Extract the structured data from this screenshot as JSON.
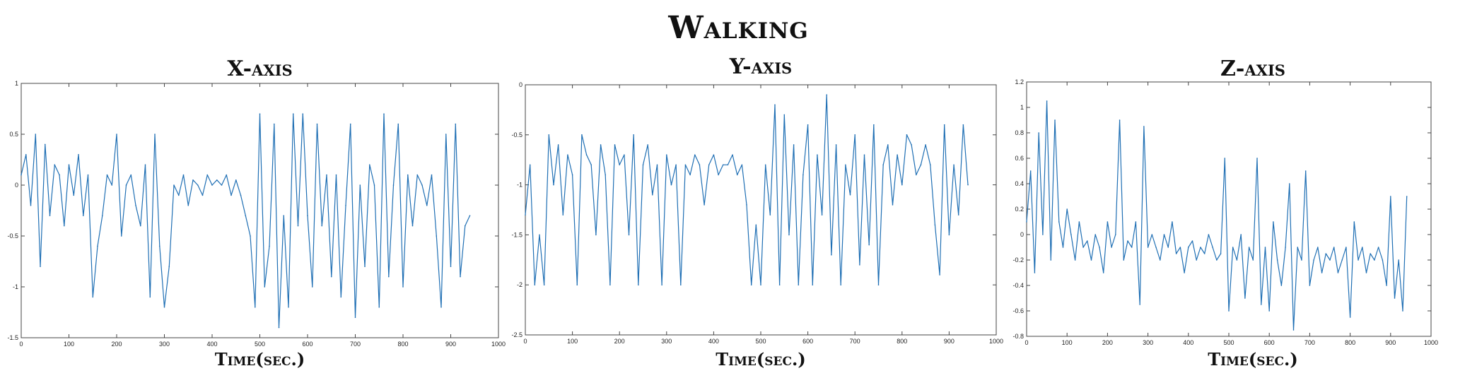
{
  "title": "Walking",
  "colors": {
    "line": "#1f6fb4",
    "axis": "#444444",
    "text": "#222222"
  },
  "panels": [
    {
      "title": "X-axis",
      "xlabel": "Time(sec.)"
    },
    {
      "title": "Y-axis",
      "xlabel": "Time(sec.)"
    },
    {
      "title": "Z-axis",
      "xlabel": "Time(sec.)"
    }
  ],
  "chart_data": [
    {
      "type": "line",
      "title": "X-axis",
      "xlabel": "Time(sec.)",
      "xlim": [
        0,
        1000
      ],
      "ylim": [
        -1.5,
        1
      ],
      "xticks": [
        0,
        100,
        200,
        300,
        400,
        500,
        600,
        700,
        800,
        900,
        1000
      ],
      "yticks": [
        -1.5,
        -1,
        -0.5,
        0,
        0.5,
        1
      ],
      "ytick_labels": [
        "-1.5",
        "-1",
        "-0.5",
        "0",
        "0.5",
        "1"
      ],
      "series": [
        {
          "x": [
            0,
            10,
            20,
            30,
            40,
            50,
            60,
            70,
            80,
            90,
            100,
            110,
            120,
            130,
            140,
            150,
            160,
            170,
            180,
            190,
            200,
            210,
            220,
            230,
            240,
            250,
            260,
            270,
            280,
            290,
            300,
            310,
            320,
            330,
            340,
            350,
            360,
            370,
            380,
            390,
            400,
            410,
            420,
            430,
            440,
            450,
            460,
            470,
            480,
            490,
            500,
            510,
            520,
            530,
            540,
            550,
            560,
            570,
            580,
            590,
            600,
            610,
            620,
            630,
            640,
            650,
            660,
            670,
            680,
            690,
            700,
            710,
            720,
            730,
            740,
            750,
            760,
            770,
            780,
            790,
            800,
            810,
            820,
            830,
            840,
            850,
            860,
            870,
            880,
            890,
            900,
            910,
            920,
            930,
            940
          ],
          "y": [
            0.1,
            0.3,
            -0.2,
            0.5,
            -0.8,
            0.4,
            -0.3,
            0.2,
            0.1,
            -0.4,
            0.2,
            -0.1,
            0.3,
            -0.3,
            0.1,
            -1.1,
            -0.6,
            -0.3,
            0.1,
            0.0,
            0.5,
            -0.5,
            0.0,
            0.1,
            -0.2,
            -0.4,
            0.2,
            -1.1,
            0.5,
            -0.6,
            -1.2,
            -0.8,
            0.0,
            -0.1,
            0.1,
            -0.2,
            0.05,
            0.0,
            -0.1,
            0.1,
            0.0,
            0.05,
            0.0,
            0.1,
            -0.1,
            0.05,
            -0.1,
            -0.3,
            -0.5,
            -1.2,
            0.7,
            -1.0,
            -0.6,
            0.6,
            -1.4,
            -0.3,
            -1.2,
            0.7,
            -0.4,
            0.7,
            -0.3,
            -1.0,
            0.6,
            -0.4,
            0.1,
            -0.9,
            0.1,
            -1.1,
            -0.2,
            0.6,
            -1.3,
            0.0,
            -0.8,
            0.2,
            0.0,
            -1.2,
            0.7,
            -0.9,
            0.0,
            0.6,
            -1.0,
            0.1,
            -0.4,
            0.1,
            0.0,
            -0.2,
            0.1,
            -0.5,
            -1.2,
            0.5,
            -0.8,
            0.6,
            -0.9,
            -0.4,
            -0.3
          ]
        }
      ]
    },
    {
      "type": "line",
      "title": "Y-axis",
      "xlabel": "Time(sec.)",
      "xlim": [
        0,
        1000
      ],
      "ylim": [
        -2.5,
        0
      ],
      "xticks": [
        0,
        100,
        200,
        300,
        400,
        500,
        600,
        700,
        800,
        900,
        1000
      ],
      "yticks": [
        -2.5,
        -2,
        -1.5,
        -1,
        -0.5,
        0
      ],
      "ytick_labels": [
        "-2.5",
        "-2",
        "-1.5",
        "-1",
        "-0.5",
        "0"
      ],
      "series": [
        {
          "x": [
            0,
            10,
            20,
            30,
            40,
            50,
            60,
            70,
            80,
            90,
            100,
            110,
            120,
            130,
            140,
            150,
            160,
            170,
            180,
            190,
            200,
            210,
            220,
            230,
            240,
            250,
            260,
            270,
            280,
            290,
            300,
            310,
            320,
            330,
            340,
            350,
            360,
            370,
            380,
            390,
            400,
            410,
            420,
            430,
            440,
            450,
            460,
            470,
            480,
            490,
            500,
            510,
            520,
            530,
            540,
            550,
            560,
            570,
            580,
            590,
            600,
            610,
            620,
            630,
            640,
            650,
            660,
            670,
            680,
            690,
            700,
            710,
            720,
            730,
            740,
            750,
            760,
            770,
            780,
            790,
            800,
            810,
            820,
            830,
            840,
            850,
            860,
            870,
            880,
            890,
            900,
            910,
            920,
            930,
            940
          ],
          "y": [
            -1.3,
            -0.8,
            -2.0,
            -1.5,
            -2.0,
            -0.5,
            -1.0,
            -0.6,
            -1.3,
            -0.7,
            -0.9,
            -2.0,
            -0.5,
            -0.7,
            -0.8,
            -1.5,
            -0.6,
            -0.9,
            -2.0,
            -0.6,
            -0.8,
            -0.7,
            -1.5,
            -0.5,
            -2.0,
            -0.8,
            -0.6,
            -1.1,
            -0.8,
            -2.0,
            -0.7,
            -1.0,
            -0.8,
            -2.0,
            -0.8,
            -0.9,
            -0.7,
            -0.8,
            -1.2,
            -0.8,
            -0.7,
            -0.9,
            -0.8,
            -0.8,
            -0.7,
            -0.9,
            -0.8,
            -1.2,
            -2.0,
            -1.4,
            -2.0,
            -0.8,
            -1.3,
            -0.2,
            -2.0,
            -0.3,
            -1.5,
            -0.6,
            -2.0,
            -0.9,
            -0.4,
            -2.0,
            -0.7,
            -1.3,
            -0.1,
            -1.7,
            -0.6,
            -2.0,
            -0.8,
            -1.1,
            -0.5,
            -1.8,
            -0.7,
            -1.6,
            -0.4,
            -2.0,
            -0.8,
            -0.6,
            -1.2,
            -0.7,
            -1.0,
            -0.5,
            -0.6,
            -0.9,
            -0.8,
            -0.6,
            -0.8,
            -1.4,
            -1.9,
            -0.4,
            -1.5,
            -0.8,
            -1.3,
            -0.4,
            -1.0
          ]
        }
      ]
    },
    {
      "type": "line",
      "title": "Z-axis",
      "xlabel": "Time(sec.)",
      "xlim": [
        0,
        1000
      ],
      "ylim": [
        -0.8,
        1.2
      ],
      "xticks": [
        0,
        100,
        200,
        300,
        400,
        500,
        600,
        700,
        800,
        900,
        1000
      ],
      "yticks": [
        -0.8,
        -0.6,
        -0.4,
        -0.2,
        0,
        0.2,
        0.4,
        0.6,
        0.8,
        1,
        1.2
      ],
      "ytick_labels": [
        "-0.8",
        "-0.6",
        "-0.4",
        "-0.2",
        "0",
        "0.2",
        "0.4",
        "0.6",
        "0.8",
        "1",
        "1.2"
      ],
      "series": [
        {
          "x": [
            0,
            10,
            20,
            30,
            40,
            50,
            60,
            70,
            80,
            90,
            100,
            110,
            120,
            130,
            140,
            150,
            160,
            170,
            180,
            190,
            200,
            210,
            220,
            230,
            240,
            250,
            260,
            270,
            280,
            290,
            300,
            310,
            320,
            330,
            340,
            350,
            360,
            370,
            380,
            390,
            400,
            410,
            420,
            430,
            440,
            450,
            460,
            470,
            480,
            490,
            500,
            510,
            520,
            530,
            540,
            550,
            560,
            570,
            580,
            590,
            600,
            610,
            620,
            630,
            640,
            650,
            660,
            670,
            680,
            690,
            700,
            710,
            720,
            730,
            740,
            750,
            760,
            770,
            780,
            790,
            800,
            810,
            820,
            830,
            840,
            850,
            860,
            870,
            880,
            890,
            900,
            910,
            920,
            930,
            940
          ],
          "y": [
            0.1,
            0.5,
            -0.3,
            0.8,
            0.0,
            1.05,
            -0.2,
            0.9,
            0.1,
            -0.1,
            0.2,
            0.0,
            -0.2,
            0.1,
            -0.1,
            -0.05,
            -0.2,
            0.0,
            -0.1,
            -0.3,
            0.1,
            -0.1,
            0.0,
            0.9,
            -0.2,
            -0.05,
            -0.1,
            0.1,
            -0.55,
            0.85,
            -0.1,
            0.0,
            -0.1,
            -0.2,
            0.0,
            -0.1,
            0.1,
            -0.15,
            -0.1,
            -0.3,
            -0.1,
            -0.05,
            -0.2,
            -0.1,
            -0.15,
            0.0,
            -0.1,
            -0.2,
            -0.15,
            0.6,
            -0.6,
            -0.1,
            -0.2,
            0.0,
            -0.5,
            -0.1,
            -0.2,
            0.6,
            -0.55,
            -0.1,
            -0.6,
            0.1,
            -0.2,
            -0.4,
            -0.1,
            0.4,
            -0.75,
            -0.1,
            -0.2,
            0.5,
            -0.4,
            -0.2,
            -0.1,
            -0.3,
            -0.15,
            -0.2,
            -0.1,
            -0.3,
            -0.2,
            -0.1,
            -0.65,
            0.1,
            -0.2,
            -0.1,
            -0.3,
            -0.15,
            -0.2,
            -0.1,
            -0.2,
            -0.4,
            0.3,
            -0.5,
            -0.2,
            -0.6,
            0.3
          ]
        }
      ]
    }
  ]
}
